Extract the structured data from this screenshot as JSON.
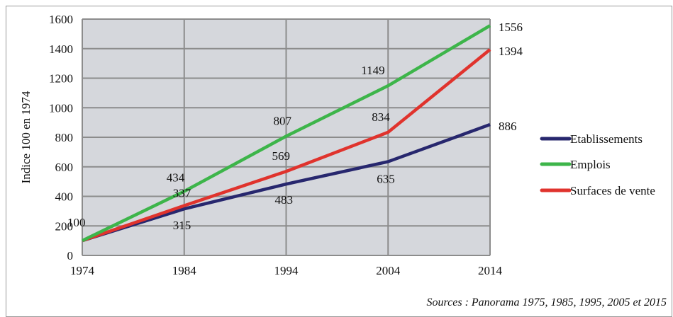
{
  "chart_data": {
    "type": "line",
    "title": "",
    "xlabel": "",
    "ylabel": "Indice 100 en 1974",
    "x": [
      1974,
      1984,
      1994,
      2004,
      2014
    ],
    "ylim": [
      0,
      1600
    ],
    "yticks": [
      0,
      200,
      400,
      600,
      800,
      1000,
      1200,
      1400,
      1600
    ],
    "grid": true,
    "legend_position": "right",
    "series": [
      {
        "name": "Etablissements",
        "color": "#27276e",
        "values": [
          100,
          315,
          483,
          635,
          886
        ],
        "labels": [
          "",
          "315",
          "483",
          "635",
          "886"
        ]
      },
      {
        "name": "Emplois",
        "color": "#3db54a",
        "values": [
          100,
          434,
          807,
          1149,
          1556
        ],
        "labels": [
          "",
          "434",
          "807",
          "1149",
          "1556"
        ]
      },
      {
        "name": "Surfaces de vente",
        "color": "#e0332d",
        "values": [
          100,
          337,
          569,
          834,
          1394
        ],
        "labels": [
          "100",
          "337",
          "569",
          "834",
          "1394"
        ]
      }
    ],
    "source": "Sources : Panorama 1975, 1985, 1995, 2005 et 2015"
  }
}
